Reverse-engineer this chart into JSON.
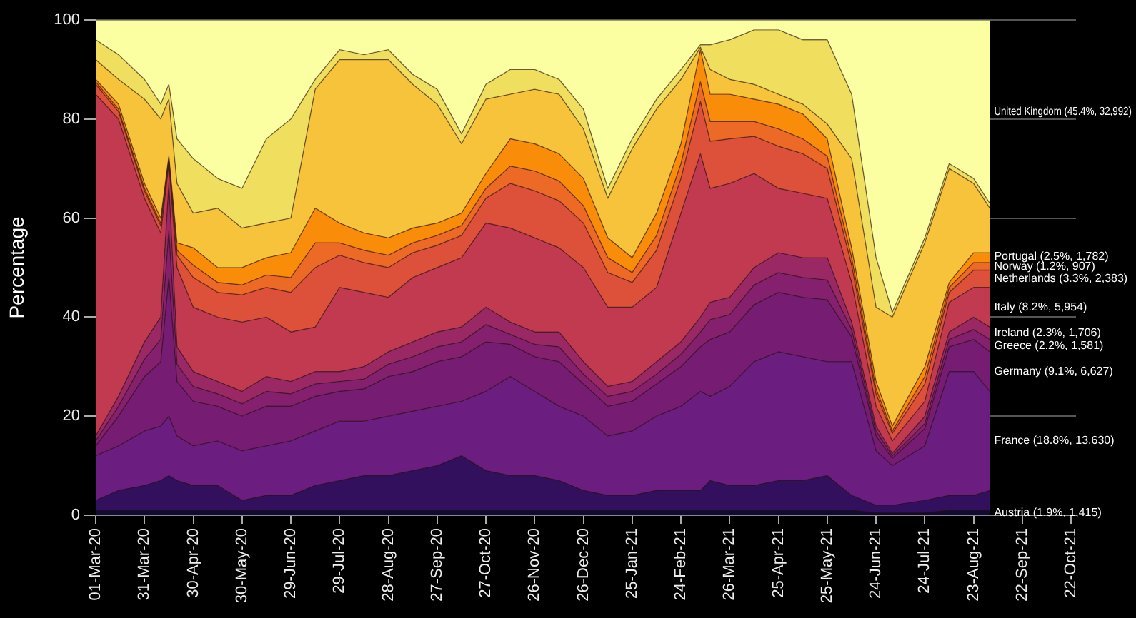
{
  "chart_data": {
    "type": "area",
    "stacked": true,
    "ylabel": "Percentage",
    "grid": "y",
    "legend": false,
    "x": [
      "2020-03-01",
      "2020-03-15",
      "2020-03-31",
      "2020-04-10",
      "2020-04-15",
      "2020-04-20",
      "2020-04-30",
      "2020-05-15",
      "2020-05-30",
      "2020-06-14",
      "2020-06-29",
      "2020-07-14",
      "2020-07-29",
      "2020-08-13",
      "2020-08-28",
      "2020-09-12",
      "2020-09-27",
      "2020-10-12",
      "2020-10-27",
      "2020-11-11",
      "2020-11-26",
      "2020-12-11",
      "2020-12-26",
      "2021-01-10",
      "2021-01-25",
      "2021-02-09",
      "2021-02-24",
      "2021-03-08",
      "2021-03-14",
      "2021-03-26",
      "2021-04-10",
      "2021-04-25",
      "2021-05-10",
      "2021-05-25",
      "2021-06-09",
      "2021-06-24",
      "2021-07-04",
      "2021-07-24",
      "2021-08-08",
      "2021-08-23",
      "2021-09-02"
    ],
    "xlim": [
      "2020-03-01",
      "2021-10-25"
    ],
    "xticks": [
      {
        "value": "2020-03-01",
        "label": "01-Mar-20"
      },
      {
        "value": "2020-03-31",
        "label": "31-Mar-20"
      },
      {
        "value": "2020-04-30",
        "label": "30-Apr-20"
      },
      {
        "value": "2020-05-30",
        "label": "30-May-20"
      },
      {
        "value": "2020-06-29",
        "label": "29-Jun-20"
      },
      {
        "value": "2020-07-29",
        "label": "29-Jul-20"
      },
      {
        "value": "2020-08-28",
        "label": "28-Aug-20"
      },
      {
        "value": "2020-09-27",
        "label": "27-Sep-20"
      },
      {
        "value": "2020-10-27",
        "label": "27-Oct-20"
      },
      {
        "value": "2020-11-26",
        "label": "26-Nov-20"
      },
      {
        "value": "2020-12-26",
        "label": "26-Dec-20"
      },
      {
        "value": "2021-01-25",
        "label": "25-Jan-21"
      },
      {
        "value": "2021-02-24",
        "label": "24-Feb-21"
      },
      {
        "value": "2021-03-26",
        "label": "26-Mar-21"
      },
      {
        "value": "2021-04-25",
        "label": "25-Apr-21"
      },
      {
        "value": "2021-05-25",
        "label": "25-May-21"
      },
      {
        "value": "2021-06-24",
        "label": "24-Jun-21"
      },
      {
        "value": "2021-07-24",
        "label": "24-Jul-21"
      },
      {
        "value": "2021-08-23",
        "label": "23-Aug-21"
      },
      {
        "value": "2021-09-22",
        "label": "22-Sep-21"
      },
      {
        "value": "2021-10-22",
        "label": "22-Oct-21"
      }
    ],
    "ylim": [
      0,
      100
    ],
    "yticks": [
      0,
      20,
      40,
      60,
      80,
      100
    ],
    "series": [
      {
        "name": "Austria (1.9%, 1,415)",
        "color": "#120a32",
        "values": [
          1,
          1,
          1,
          1,
          1,
          1,
          1,
          1,
          1,
          1,
          1,
          1,
          1,
          1,
          1,
          1,
          1,
          1,
          1,
          1,
          1,
          1,
          1,
          1,
          1,
          1,
          1,
          1,
          1,
          1,
          1,
          1,
          1,
          1,
          1,
          0.5,
          0.5,
          0.5,
          1,
          1,
          1
        ]
      },
      {
        "color": "#33105e",
        "values": [
          2,
          4,
          5,
          6,
          7,
          6,
          5,
          5,
          2,
          3,
          3,
          5,
          6,
          7,
          7,
          8,
          9,
          11,
          8,
          7,
          7,
          6,
          4,
          3,
          3,
          4,
          4,
          4,
          6,
          5,
          5,
          6,
          6,
          7,
          3,
          1.5,
          1.5,
          2.5,
          3,
          3,
          4
        ]
      },
      {
        "name": "France (18.8%, 13,630)",
        "color": "#6c1d80",
        "values": [
          9,
          9,
          11,
          11,
          12,
          9,
          8,
          9,
          10,
          10,
          11,
          11,
          12,
          11,
          12,
          12,
          12,
          11,
          16,
          20,
          17,
          15,
          15,
          12,
          13,
          15,
          17,
          20,
          17,
          20,
          25,
          26,
          25,
          23,
          27,
          11,
          8,
          11,
          25,
          25,
          20
        ]
      },
      {
        "name": "Germany (9.1%, 6,627)",
        "color": "#761c72",
        "values": [
          2,
          6,
          11,
          13,
          28,
          11,
          9,
          7,
          7,
          8,
          7,
          7,
          6,
          6.5,
          8,
          8,
          9,
          9,
          10,
          6.5,
          7,
          9,
          6.5,
          6,
          6,
          6.5,
          8,
          9,
          11.5,
          11,
          11.5,
          12,
          12,
          12.5,
          5,
          3,
          1.5,
          3.5,
          5,
          6.5,
          8
        ]
      },
      {
        "name": "Greece (2.2%, 1,581)",
        "color": "#84206d",
        "values": [
          1,
          2,
          3.5,
          4.5,
          9.5,
          3.5,
          3,
          2.5,
          2.5,
          3,
          2.5,
          2.5,
          2,
          2,
          2.5,
          3,
          3,
          3,
          3.5,
          2,
          2.5,
          3,
          2,
          2,
          2,
          2,
          2.5,
          3,
          4,
          3.5,
          4,
          4,
          4,
          4,
          1.5,
          1,
          0.5,
          1,
          1.5,
          2,
          2.5
        ]
      },
      {
        "name": "Ireland (2.3%, 1,706)",
        "color": "#9a2865",
        "values": [
          1,
          2,
          3.5,
          4.5,
          9.5,
          3.5,
          3,
          2.5,
          2.5,
          3,
          2.5,
          2.5,
          2,
          2.5,
          2.5,
          3,
          3,
          3,
          3.5,
          2.5,
          2.5,
          3,
          2.5,
          2,
          2,
          2.5,
          2.5,
          3,
          3.5,
          3.5,
          3.5,
          4,
          4,
          4.5,
          1.5,
          1,
          0.5,
          1.5,
          1.5,
          2.5,
          2.5
        ]
      },
      {
        "name": "Italy (8.2%, 5,954)",
        "color": "#c13a50",
        "values": [
          69,
          56,
          29,
          17,
          4,
          16,
          13,
          13,
          14,
          12,
          10,
          9,
          17,
          15,
          11,
          13,
          13,
          14,
          17,
          19,
          19,
          17,
          19,
          16,
          15,
          15,
          26,
          33,
          23,
          23,
          19,
          13,
          13,
          12,
          8,
          4,
          2.5,
          3,
          6,
          6,
          8
        ]
      },
      {
        "name": "Netherlands (3.3%, 2,383)",
        "color": "#dd513a",
        "values": [
          2,
          1.5,
          1.5,
          1.5,
          0.5,
          2.5,
          6,
          5,
          5.5,
          6,
          8,
          12,
          6.5,
          6,
          6,
          5,
          4.5,
          4.5,
          5,
          9,
          9.5,
          9.5,
          9,
          7,
          5,
          7.5,
          7,
          10.5,
          9.5,
          9,
          7.5,
          8.5,
          8,
          6,
          3.5,
          2.5,
          1.5,
          3.5,
          2,
          3.5,
          3.5
        ]
      },
      {
        "name": "Norway (1.2%, 907)",
        "color": "#ec6a26",
        "values": [
          0.5,
          0.5,
          0.5,
          0.5,
          0.5,
          1,
          2.5,
          2,
          2,
          2.5,
          3,
          5,
          2.5,
          2.5,
          2.5,
          2,
          2,
          2,
          2,
          3.5,
          4,
          4,
          3.5,
          3,
          2,
          3,
          3,
          4,
          4,
          3.5,
          3,
          3.5,
          3,
          2.5,
          1.5,
          1,
          0.5,
          1.5,
          1,
          1.5,
          1.5
        ]
      },
      {
        "name": "Portugal (2.5%, 1,782)",
        "color": "#f98d0a",
        "values": [
          0.5,
          1,
          1,
          1,
          0.5,
          1.5,
          3.5,
          3,
          3.5,
          3.5,
          5,
          7,
          4,
          3.5,
          3.5,
          3,
          2.5,
          2.5,
          3,
          5.5,
          5.5,
          5.5,
          5.5,
          4,
          3,
          4.5,
          4,
          6.5,
          5.5,
          5.5,
          4.5,
          5,
          5,
          3.5,
          2,
          1.5,
          1,
          2,
          1,
          2,
          2
        ]
      },
      {
        "color": "#f6c33a",
        "values": [
          4,
          5,
          17,
          20,
          11.5,
          12,
          7,
          12,
          8,
          7,
          7,
          24,
          33,
          35,
          36,
          29,
          24,
          14,
          15,
          9,
          11,
          12,
          10,
          8,
          22,
          21,
          13,
          0.5,
          5,
          3,
          3,
          2,
          2,
          3,
          18,
          15,
          22,
          25,
          23,
          14,
          9
        ]
      },
      {
        "color": "#f0df5f",
        "values": [
          4,
          5,
          4,
          3,
          3,
          9,
          11,
          6,
          8,
          17,
          20,
          2,
          2,
          1,
          2,
          2,
          3,
          2,
          3,
          5,
          4,
          3,
          4,
          2,
          2,
          2,
          2,
          0.5,
          5,
          8,
          11,
          13,
          13,
          17,
          13,
          10,
          1,
          1,
          1,
          1,
          1
        ]
      },
      {
        "name": "United Kingdom (45.4%, 32,992)",
        "color": "#fcfea2",
        "values": [
          4,
          7,
          12,
          17,
          13,
          24,
          28,
          32,
          34,
          24,
          20,
          12,
          6,
          7,
          6,
          11,
          14,
          23,
          13,
          10,
          10,
          12,
          18,
          34,
          24,
          16,
          10,
          5,
          5,
          4,
          2,
          2,
          4,
          4,
          15,
          48,
          59,
          44,
          29,
          32,
          37
        ]
      }
    ]
  }
}
